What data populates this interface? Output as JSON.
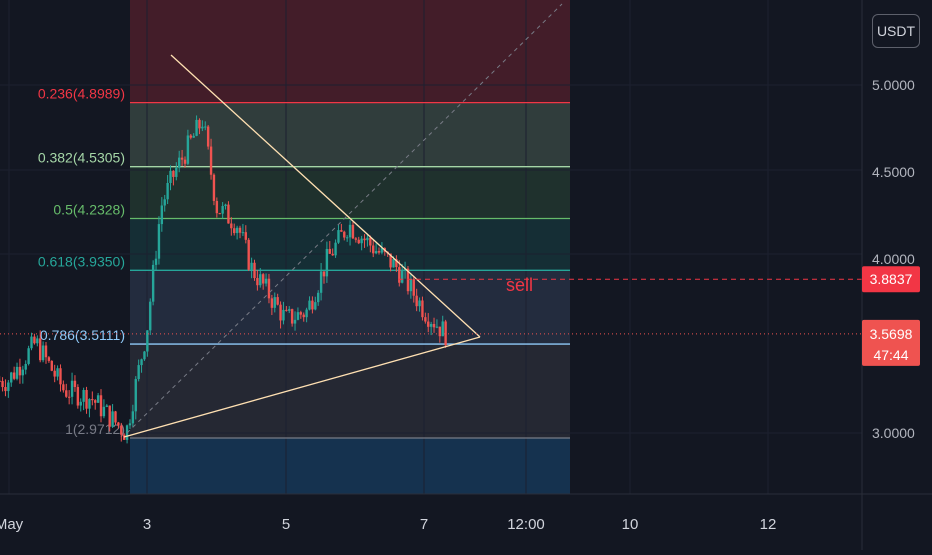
{
  "price_axis": {
    "currency": "USDT",
    "ticks": [
      "5.0000",
      "4.5000",
      "4.0000",
      "3.0000"
    ]
  },
  "time_axis": {
    "ticks": [
      "May",
      "3",
      "5",
      "7",
      "12:00",
      "10",
      "12"
    ]
  },
  "fib_levels": [
    {
      "label": "0.236(4.8989)",
      "price": 4.8989,
      "color": "#f23645"
    },
    {
      "label": "0.382(4.5305)",
      "price": 4.5305,
      "color": "#a5d6a7"
    },
    {
      "label": "0.5(4.2328)",
      "price": 4.2328,
      "color": "#66bb6a"
    },
    {
      "label": "0.618(3.9350)",
      "price": 3.935,
      "color": "#26a69a"
    },
    {
      "label": "0.786(3.5111)",
      "price": 3.5111,
      "color": "#90caf9"
    },
    {
      "label": "1(2.9712)",
      "price": 2.9712,
      "color": "#787b86"
    }
  ],
  "annotation": {
    "text": "sell",
    "price": 3.8837
  },
  "price_labels": {
    "sell_price": "3.8837",
    "last_price": "3.5698",
    "countdown": "47:44"
  },
  "colors": {
    "background": "#131722",
    "up": "#26a69a",
    "down": "#ef5350",
    "trendline": "#ffe0b2",
    "sell": "#f23645"
  },
  "chart_data": {
    "type": "candlestick",
    "instrument_quote": "USDT",
    "time_ticks": [
      "May",
      "3",
      "5",
      "7",
      "12:00",
      "10",
      "12"
    ],
    "price_ticks": [
      5.0,
      4.5,
      4.0,
      3.0
    ],
    "price_range": [
      2.6,
      5.6
    ],
    "last_price": 3.5698,
    "fib_retracement": [
      {
        "ratio": 0.236,
        "price": 4.8989
      },
      {
        "ratio": 0.382,
        "price": 4.5305
      },
      {
        "ratio": 0.5,
        "price": 4.2328
      },
      {
        "ratio": 0.618,
        "price": 3.935
      },
      {
        "ratio": 0.786,
        "price": 3.5111
      },
      {
        "ratio": 1,
        "price": 2.9712
      }
    ],
    "horizontal_line": {
      "label": "sell",
      "price": 3.8837
    },
    "close_path": [
      {
        "day": 1.0,
        "close": 3.3
      },
      {
        "day": 1.4,
        "close": 3.52
      },
      {
        "day": 1.8,
        "close": 3.25
      },
      {
        "day": 2.2,
        "close": 3.2
      },
      {
        "day": 2.7,
        "close": 3.0
      },
      {
        "day": 3.0,
        "close": 3.6
      },
      {
        "day": 3.2,
        "close": 4.3
      },
      {
        "day": 3.4,
        "close": 4.5
      },
      {
        "day": 3.8,
        "close": 4.8
      },
      {
        "day": 4.0,
        "close": 4.3
      },
      {
        "day": 4.3,
        "close": 4.2
      },
      {
        "day": 4.5,
        "close": 3.95
      },
      {
        "day": 5.0,
        "close": 3.65
      },
      {
        "day": 5.3,
        "close": 3.7
      },
      {
        "day": 5.6,
        "close": 4.0
      },
      {
        "day": 5.9,
        "close": 4.2
      },
      {
        "day": 6.3,
        "close": 4.05
      },
      {
        "day": 6.6,
        "close": 3.95
      },
      {
        "day": 7.0,
        "close": 3.7
      },
      {
        "day": 7.3,
        "close": 3.57
      }
    ]
  }
}
